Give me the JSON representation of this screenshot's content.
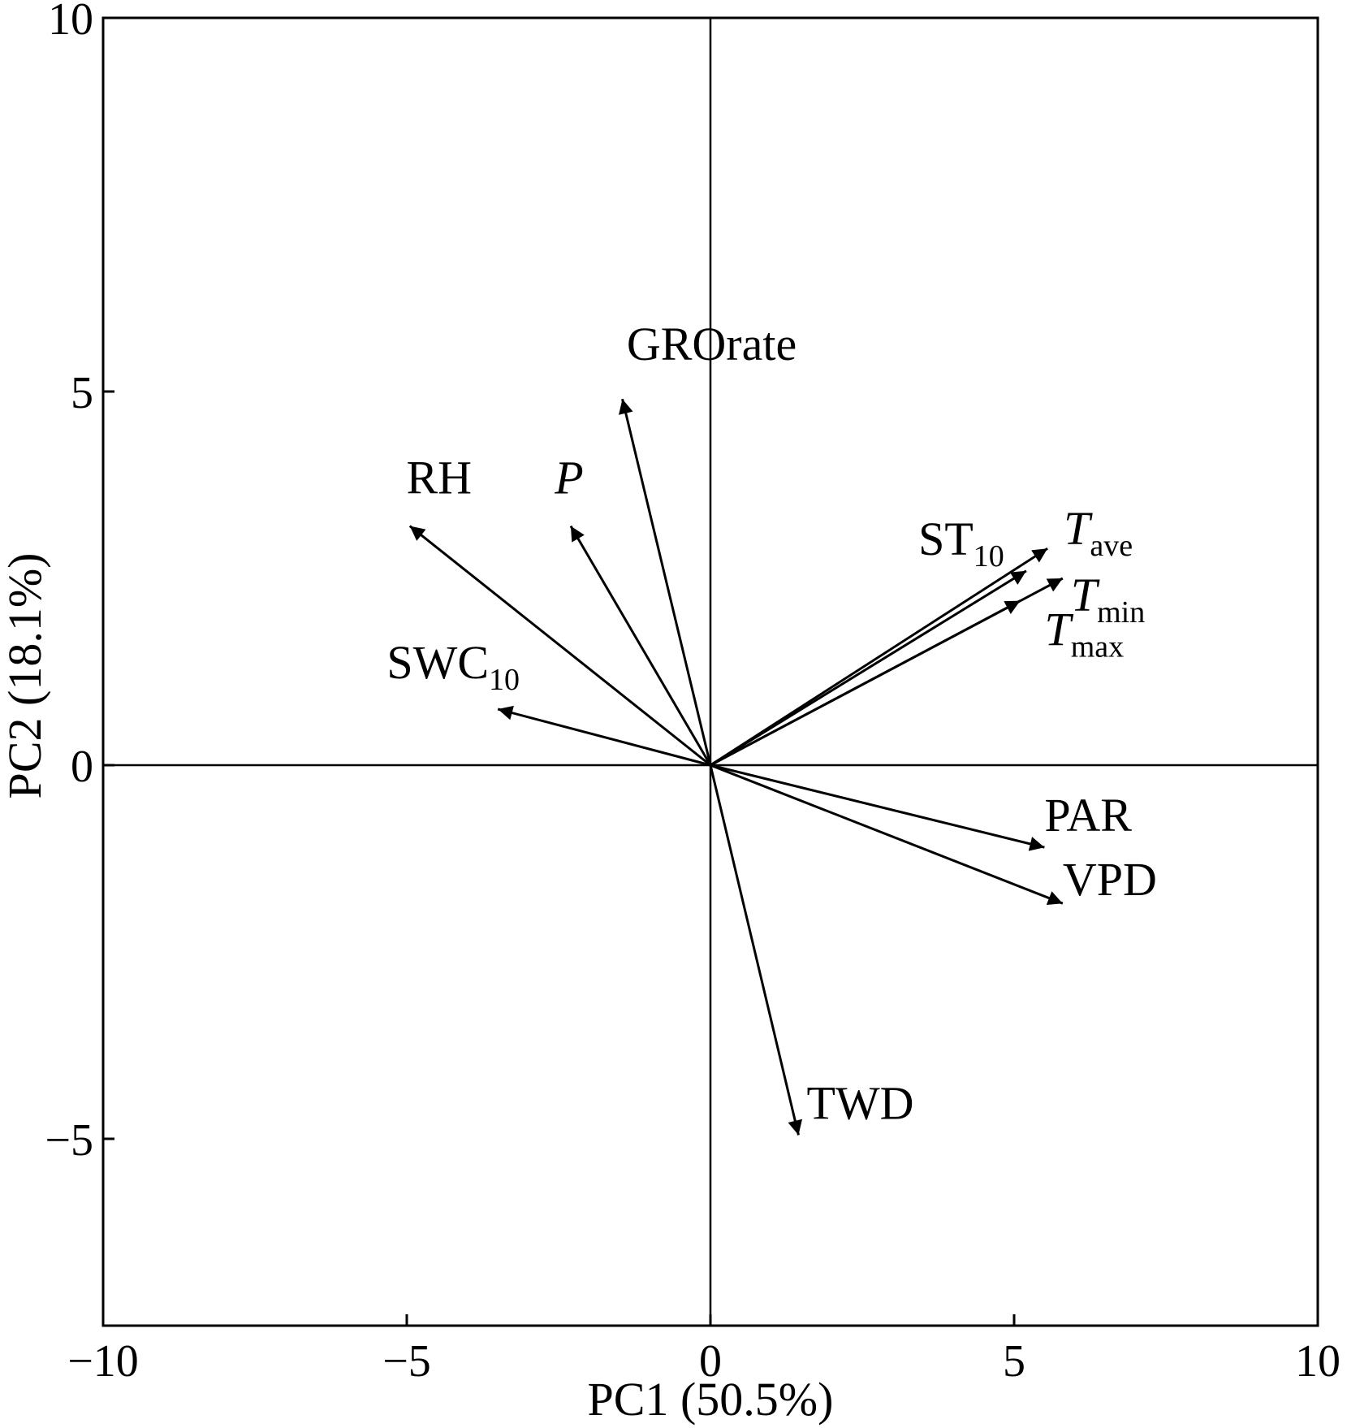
{
  "chart_data": {
    "type": "scatter",
    "subtype": "pca-biplot-loadings",
    "title": "",
    "xlabel": "PC1 (50.5%)",
    "ylabel": "PC2 (18.1%)",
    "xlim": [
      -10,
      10
    ],
    "ylim": [
      -7.5,
      10
    ],
    "xticks": [
      -10,
      -5,
      0,
      5,
      10
    ],
    "yticks": [
      -5,
      0,
      5,
      10
    ],
    "xtick_labels": [
      "−10",
      "−5",
      "0",
      "5",
      "10"
    ],
    "ytick_labels": [
      "−5",
      "0",
      "5",
      "10"
    ],
    "grid": false,
    "zero_lines": true,
    "vectors": [
      {
        "name": "GROrate",
        "base": "GROrate",
        "sub": "",
        "italic": false,
        "x": -1.45,
        "y": 4.9
      },
      {
        "name": "RH",
        "base": "RH",
        "sub": "",
        "italic": false,
        "x": -4.95,
        "y": 3.2
      },
      {
        "name": "P",
        "base": "P",
        "sub": "",
        "italic": true,
        "x": -2.3,
        "y": 3.2
      },
      {
        "name": "SWC10",
        "base": "SWC",
        "sub": "10",
        "italic": false,
        "x": -3.5,
        "y": 0.75
      },
      {
        "name": "ST10",
        "base": "ST",
        "sub": "10",
        "italic": false,
        "x": 5.2,
        "y": 2.6
      },
      {
        "name": "Tave",
        "base": "T",
        "sub": "ave",
        "italic": true,
        "x": 5.55,
        "y": 2.9
      },
      {
        "name": "Tmin",
        "base": "T",
        "sub": "min",
        "italic": true,
        "x": 5.8,
        "y": 2.5
      },
      {
        "name": "Tmax",
        "base": "T",
        "sub": "max",
        "italic": true,
        "x": 5.1,
        "y": 2.2
      },
      {
        "name": "PAR",
        "base": "PAR",
        "sub": "",
        "italic": false,
        "x": 5.5,
        "y": -1.1
      },
      {
        "name": "VPD",
        "base": "VPD",
        "sub": "",
        "italic": false,
        "x": 5.8,
        "y": -1.85
      },
      {
        "name": "TWD",
        "base": "TWD",
        "sub": "",
        "italic": false,
        "x": 1.45,
        "y": -4.95
      }
    ]
  }
}
